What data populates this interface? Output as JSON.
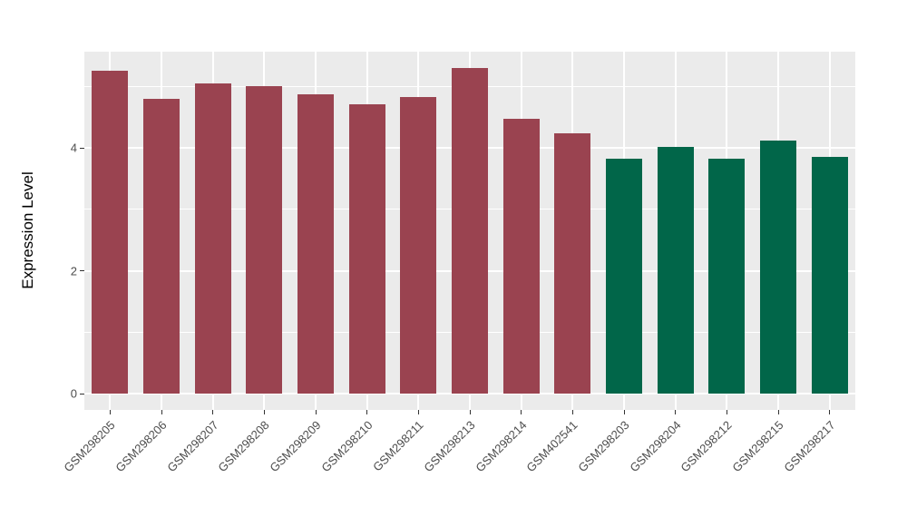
{
  "chart_data": {
    "type": "bar",
    "title": "",
    "xlabel": "",
    "ylabel": "Expression Level",
    "categories": [
      "GSM298205",
      "GSM298206",
      "GSM298207",
      "GSM298208",
      "GSM298209",
      "GSM298210",
      "GSM298211",
      "GSM298213",
      "GSM298214",
      "GSM402541",
      "GSM298203",
      "GSM298204",
      "GSM298212",
      "GSM298215",
      "GSM298217"
    ],
    "values": [
      5.25,
      4.8,
      5.05,
      5.01,
      4.87,
      4.71,
      4.83,
      5.3,
      4.47,
      4.24,
      3.83,
      4.01,
      3.83,
      4.12,
      3.85
    ],
    "groups": [
      "red",
      "red",
      "red",
      "red",
      "red",
      "red",
      "red",
      "red",
      "red",
      "red",
      "green",
      "green",
      "green",
      "green",
      "green"
    ],
    "group_colors": {
      "red": "#9A4350",
      "green": "#016649"
    },
    "y_ticks": [
      0,
      2,
      4
    ],
    "y_minor_ticks": [
      1,
      3,
      5
    ],
    "ylim": [
      -0.27,
      5.57
    ],
    "legend": "none",
    "grid": "white major/minor horizontal lines, white vertical line at each category center",
    "panel_background": "#EBEBEB",
    "gridline_color": "#FFFFFF",
    "axis_text_color": "#4D4D4D",
    "axis_title_color": "#000000"
  }
}
